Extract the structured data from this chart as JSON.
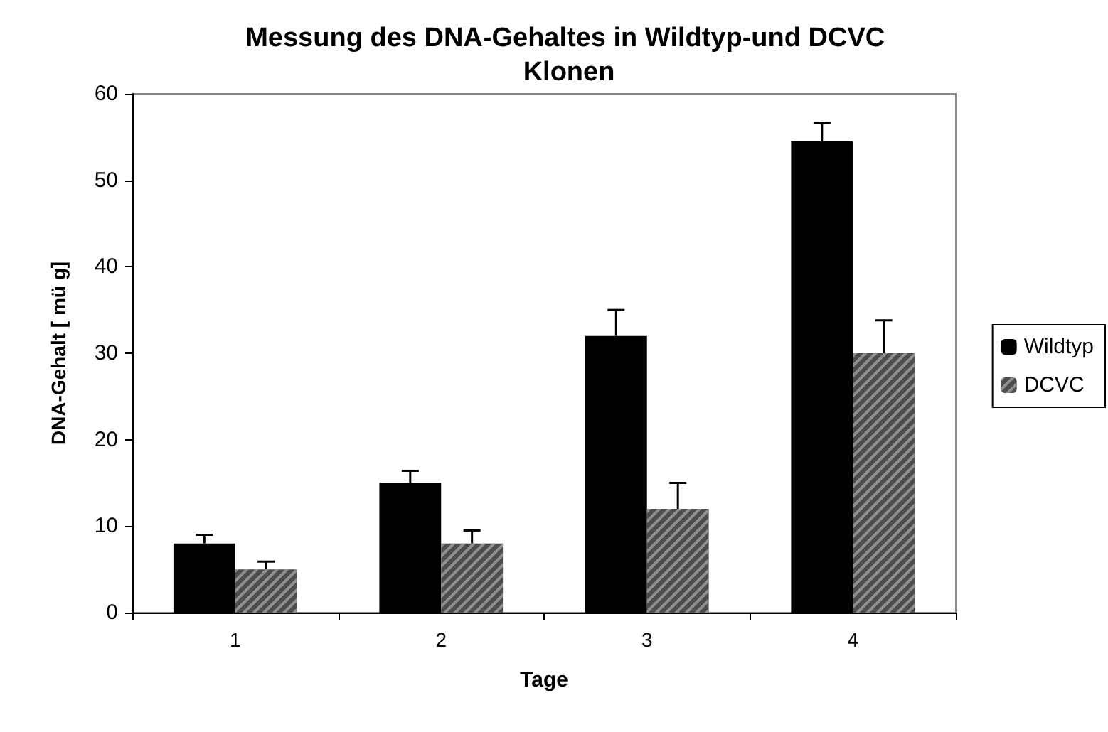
{
  "chart_data": {
    "type": "bar",
    "title": "Messung des DNA-Gehaltes in Wildtyp-und DCVC Klonen",
    "xlabel": "Tage",
    "ylabel": "DNA-Gehalt [ mü g]",
    "categories": [
      "1",
      "2",
      "3",
      "4"
    ],
    "series": [
      {
        "name": "Wildtyp",
        "color": "#000000",
        "values": [
          8,
          15,
          32,
          54.5
        ],
        "errors": [
          [
            8,
            9
          ],
          [
            15,
            16.4
          ],
          [
            32,
            35
          ],
          [
            54.5,
            56.6
          ]
        ]
      },
      {
        "name": "DCVC",
        "color": "#4d4d4d",
        "values": [
          5,
          8,
          12,
          30
        ],
        "errors": [
          [
            5,
            5.9
          ],
          [
            8,
            9.5
          ],
          [
            12,
            15
          ],
          [
            30,
            33.8
          ]
        ]
      }
    ],
    "ylim": [
      0,
      60
    ],
    "yticks": [
      0,
      10,
      20,
      30,
      40,
      50,
      60
    ],
    "grid": false,
    "legend": "right"
  }
}
